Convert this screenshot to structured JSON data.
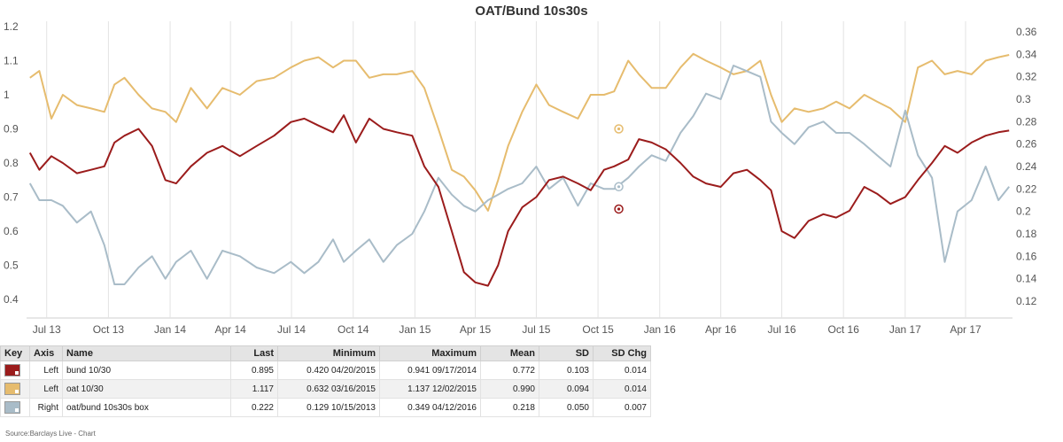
{
  "chart_data": {
    "type": "line",
    "title": "OAT/Bund 10s30s",
    "xlabel": "",
    "ylabel_left": "",
    "ylabel_right": "",
    "ylim_left": [
      0.38,
      1.21
    ],
    "ylim_right": [
      0.12,
      0.36
    ],
    "yticks_left": [
      "0.4",
      "0.5",
      "0.6",
      "0.7",
      "0.8",
      "0.9",
      "1",
      "1.1",
      "1.2"
    ],
    "yticks_right": [
      "0.12",
      "0.14",
      "0.16",
      "0.18",
      "0.2",
      "0.22",
      "0.24",
      "0.26",
      "0.28",
      "0.3",
      "0.32",
      "0.34",
      "0.36"
    ],
    "x_ticks": [
      "Jul 13",
      "Oct 13",
      "Jan 14",
      "Apr 14",
      "Jul 14",
      "Oct 14",
      "Jan 15",
      "Apr 15",
      "Jul 15",
      "Oct 15",
      "Jan 16",
      "Apr 16",
      "Jul 16",
      "Oct 16",
      "Jan 17",
      "Apr 17"
    ],
    "grid": "vertical",
    "legend": "table-below",
    "series": [
      {
        "name": "bund 10/30",
        "axis": "left",
        "color": "#9b1c1c",
        "x": [
          "2013-06-06",
          "2013-06-20",
          "2013-07-08",
          "2013-07-25",
          "2013-08-15",
          "2013-09-05",
          "2013-09-25",
          "2013-10-10",
          "2013-10-25",
          "2013-11-15",
          "2013-12-05",
          "2013-12-25",
          "2014-01-10",
          "2014-02-01",
          "2014-02-25",
          "2014-03-20",
          "2014-04-15",
          "2014-05-10",
          "2014-06-05",
          "2014-06-30",
          "2014-07-20",
          "2014-08-10",
          "2014-09-01",
          "2014-09-17",
          "2014-10-05",
          "2014-10-25",
          "2014-11-15",
          "2014-12-05",
          "2014-12-28",
          "2015-01-15",
          "2015-02-05",
          "2015-02-25",
          "2015-03-15",
          "2015-04-01",
          "2015-04-20",
          "2015-05-05",
          "2015-05-20",
          "2015-06-10",
          "2015-07-01",
          "2015-07-20",
          "2015-08-10",
          "2015-09-01",
          "2015-09-20",
          "2015-10-10",
          "2015-10-25",
          "2015-11-15",
          "2015-12-01",
          "2015-12-20",
          "2016-01-10",
          "2016-02-01",
          "2016-02-20",
          "2016-03-10",
          "2016-04-01",
          "2016-04-20",
          "2016-05-10",
          "2016-05-30",
          "2016-06-15",
          "2016-07-01",
          "2016-07-20",
          "2016-08-10",
          "2016-09-01",
          "2016-09-20",
          "2016-10-10",
          "2016-11-01",
          "2016-11-20",
          "2016-12-10",
          "2017-01-01",
          "2017-01-20",
          "2017-02-10",
          "2017-03-01",
          "2017-03-20",
          "2017-04-10",
          "2017-05-01",
          "2017-05-20",
          "2017-06-05"
        ],
        "values": [
          0.83,
          0.78,
          0.82,
          0.8,
          0.77,
          0.78,
          0.79,
          0.86,
          0.88,
          0.9,
          0.85,
          0.75,
          0.74,
          0.79,
          0.83,
          0.85,
          0.82,
          0.85,
          0.88,
          0.92,
          0.93,
          0.91,
          0.89,
          0.94,
          0.86,
          0.93,
          0.9,
          0.89,
          0.88,
          0.79,
          0.73,
          0.6,
          0.48,
          0.45,
          0.44,
          0.5,
          0.6,
          0.67,
          0.7,
          0.75,
          0.76,
          0.74,
          0.72,
          0.78,
          0.79,
          0.81,
          0.87,
          0.86,
          0.84,
          0.8,
          0.76,
          0.74,
          0.73,
          0.77,
          0.78,
          0.75,
          0.72,
          0.6,
          0.58,
          0.63,
          0.65,
          0.64,
          0.66,
          0.73,
          0.71,
          0.68,
          0.7,
          0.75,
          0.8,
          0.85,
          0.83,
          0.86,
          0.88,
          0.89,
          0.895
        ]
      },
      {
        "name": "oat 10/30",
        "axis": "left",
        "color": "#e6bc6e",
        "x": [
          "2013-06-06",
          "2013-06-20",
          "2013-07-08",
          "2013-07-25",
          "2013-08-15",
          "2013-09-05",
          "2013-09-25",
          "2013-10-10",
          "2013-10-25",
          "2013-11-15",
          "2013-12-05",
          "2013-12-25",
          "2014-01-10",
          "2014-02-01",
          "2014-02-25",
          "2014-03-20",
          "2014-04-15",
          "2014-05-10",
          "2014-06-05",
          "2014-06-30",
          "2014-07-20",
          "2014-08-10",
          "2014-09-01",
          "2014-09-17",
          "2014-10-05",
          "2014-10-25",
          "2014-11-15",
          "2014-12-05",
          "2014-12-28",
          "2015-01-15",
          "2015-02-05",
          "2015-02-25",
          "2015-03-15",
          "2015-04-01",
          "2015-04-20",
          "2015-05-05",
          "2015-05-20",
          "2015-06-10",
          "2015-07-01",
          "2015-07-20",
          "2015-08-10",
          "2015-09-01",
          "2015-09-20",
          "2015-10-10",
          "2015-10-25",
          "2015-11-15",
          "2015-12-01",
          "2015-12-20",
          "2016-01-10",
          "2016-02-01",
          "2016-02-20",
          "2016-03-10",
          "2016-04-01",
          "2016-04-20",
          "2016-05-10",
          "2016-05-30",
          "2016-06-15",
          "2016-07-01",
          "2016-07-20",
          "2016-08-10",
          "2016-09-01",
          "2016-09-20",
          "2016-10-10",
          "2016-11-01",
          "2016-11-20",
          "2016-12-10",
          "2017-01-01",
          "2017-01-20",
          "2017-02-10",
          "2017-03-01",
          "2017-03-20",
          "2017-04-10",
          "2017-05-01",
          "2017-05-20",
          "2017-06-05"
        ],
        "values": [
          1.05,
          1.07,
          0.93,
          1.0,
          0.97,
          0.96,
          0.95,
          1.03,
          1.05,
          1.0,
          0.96,
          0.95,
          0.92,
          1.02,
          0.96,
          1.02,
          1.0,
          1.04,
          1.05,
          1.08,
          1.1,
          1.11,
          1.08,
          1.1,
          1.1,
          1.05,
          1.06,
          1.06,
          1.07,
          1.02,
          0.9,
          0.78,
          0.76,
          0.72,
          0.66,
          0.75,
          0.85,
          0.95,
          1.03,
          0.97,
          0.95,
          0.93,
          1.0,
          1.0,
          1.01,
          1.1,
          1.06,
          1.02,
          1.02,
          1.08,
          1.12,
          1.1,
          1.08,
          1.06,
          1.07,
          1.1,
          1.0,
          0.92,
          0.96,
          0.95,
          0.96,
          0.98,
          0.96,
          1.0,
          0.98,
          0.96,
          0.92,
          1.08,
          1.1,
          1.06,
          1.07,
          1.06,
          1.1,
          1.11,
          1.117
        ]
      },
      {
        "name": "oat/bund 10s30s box",
        "axis": "right",
        "color": "#a9bcc8",
        "x": [
          "2013-06-06",
          "2013-06-20",
          "2013-07-08",
          "2013-07-25",
          "2013-08-15",
          "2013-09-05",
          "2013-09-25",
          "2013-10-10",
          "2013-10-25",
          "2013-11-15",
          "2013-12-05",
          "2013-12-25",
          "2014-01-10",
          "2014-02-01",
          "2014-02-25",
          "2014-03-20",
          "2014-04-15",
          "2014-05-10",
          "2014-06-05",
          "2014-06-30",
          "2014-07-20",
          "2014-08-10",
          "2014-09-01",
          "2014-09-17",
          "2014-10-05",
          "2014-10-25",
          "2014-11-15",
          "2014-12-05",
          "2014-12-28",
          "2015-01-15",
          "2015-02-05",
          "2015-02-25",
          "2015-03-15",
          "2015-04-01",
          "2015-04-20",
          "2015-05-05",
          "2015-05-20",
          "2015-06-10",
          "2015-07-01",
          "2015-07-20",
          "2015-08-10",
          "2015-09-01",
          "2015-09-20",
          "2015-10-10",
          "2015-10-25",
          "2015-11-15",
          "2015-12-01",
          "2015-12-20",
          "2016-01-10",
          "2016-02-01",
          "2016-02-20",
          "2016-03-10",
          "2016-04-01",
          "2016-04-20",
          "2016-05-10",
          "2016-05-30",
          "2016-06-15",
          "2016-07-01",
          "2016-07-20",
          "2016-08-10",
          "2016-09-01",
          "2016-09-20",
          "2016-10-10",
          "2016-11-01",
          "2016-11-20",
          "2016-12-10",
          "2017-01-01",
          "2017-01-20",
          "2017-02-10",
          "2017-03-01",
          "2017-03-20",
          "2017-04-10",
          "2017-05-01",
          "2017-05-20",
          "2017-06-05"
        ],
        "values": [
          0.225,
          0.21,
          0.21,
          0.205,
          0.19,
          0.2,
          0.17,
          0.135,
          0.135,
          0.15,
          0.16,
          0.14,
          0.155,
          0.165,
          0.14,
          0.165,
          0.16,
          0.15,
          0.145,
          0.155,
          0.145,
          0.155,
          0.175,
          0.155,
          0.165,
          0.175,
          0.155,
          0.17,
          0.18,
          0.2,
          0.23,
          0.215,
          0.205,
          0.2,
          0.21,
          0.215,
          0.22,
          0.225,
          0.24,
          0.22,
          0.23,
          0.205,
          0.225,
          0.22,
          0.22,
          0.23,
          0.24,
          0.25,
          0.245,
          0.27,
          0.285,
          0.305,
          0.3,
          0.33,
          0.325,
          0.32,
          0.28,
          0.27,
          0.26,
          0.275,
          0.28,
          0.27,
          0.27,
          0.26,
          0.25,
          0.24,
          0.29,
          0.25,
          0.23,
          0.155,
          0.2,
          0.21,
          0.24,
          0.21,
          0.222
        ]
      }
    ],
    "annotations": [
      {
        "series": "oat 10/30",
        "x": "2015-11-01",
        "value": 0.9
      },
      {
        "series": "oat/bund 10s30s box",
        "x": "2015-11-01",
        "value": 0.222
      },
      {
        "series": "bund 10/30",
        "x": "2015-11-01",
        "value": 0.665
      }
    ]
  },
  "table": {
    "headers": {
      "key": "Key",
      "axis": "Axis",
      "name": "Name",
      "last": "Last",
      "min": "Minimum",
      "max": "Maximum",
      "mean": "Mean",
      "sd": "SD",
      "sdchg": "SD Chg"
    },
    "rows": [
      {
        "color": "#9b1c1c",
        "axis": "Left",
        "name": "bund 10/30",
        "last": "0.895",
        "min": "0.420 04/20/2015",
        "max": "0.941 09/17/2014",
        "mean": "0.772",
        "sd": "0.103",
        "sdchg": "0.014"
      },
      {
        "color": "#e6bc6e",
        "axis": "Left",
        "name": "oat 10/30",
        "last": "1.117",
        "min": "0.632 03/16/2015",
        "max": "1.137 12/02/2015",
        "mean": "0.990",
        "sd": "0.094",
        "sdchg": "0.014"
      },
      {
        "color": "#a9bcc8",
        "axis": "Right",
        "name": "oat/bund 10s30s box",
        "last": "0.222",
        "min": "0.129 10/15/2013",
        "max": "0.349 04/12/2016",
        "mean": "0.218",
        "sd": "0.050",
        "sdchg": "0.007"
      }
    ]
  },
  "source": "Source:Barclays Live - Chart"
}
